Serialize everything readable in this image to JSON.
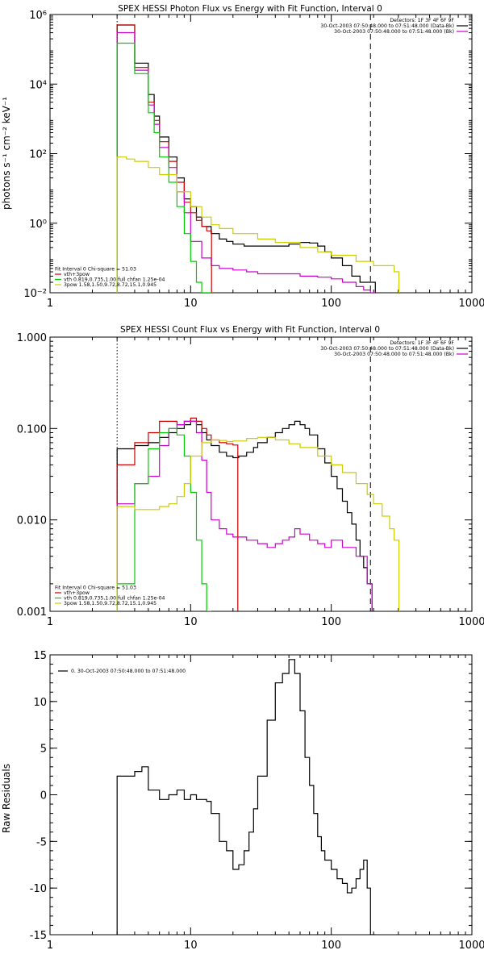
{
  "chart_data": [
    {
      "type": "line",
      "title": "SPEX HESSI Photon Flux vs Energy with Fit Function, Interval 0",
      "xlabel": "",
      "ylabel": "photons s⁻¹ cm⁻² keV⁻¹",
      "xscale": "log",
      "yscale": "log",
      "xlim": [
        1,
        1000
      ],
      "ylim": [
        0.01,
        1000000
      ],
      "x_ticks": [
        1,
        10,
        100,
        1000
      ],
      "x_tick_labels": [
        "1",
        "10",
        "100",
        "1000"
      ],
      "y_ticks": [
        0.01,
        1,
        100,
        10000,
        1000000
      ],
      "y_tick_labels": [
        "10⁻²",
        "10⁰",
        "10²",
        "10⁴",
        "10⁶"
      ],
      "vlines": [
        {
          "x": 3.0,
          "style": "dotted",
          "color": "#000000"
        },
        {
          "x": 190,
          "style": "dashed",
          "color": "#000000"
        }
      ],
      "legend_top_right": [
        {
          "text": "Detectors: 1F 3F 4F 6F 9F",
          "color": ""
        },
        {
          "text": "30-Oct-2003 07:50:48.000 to 07:51:48.000 (Data-Bk)",
          "color": "#000000"
        },
        {
          "text": "30-Oct-2003 07:50:48.000 to 07:51:48.000 (Bk)",
          "color": "#cc00cc"
        }
      ],
      "legend_bottom_left": [
        {
          "text": "Fit Interval 0    Chi-square = 51.03",
          "color": ""
        },
        {
          "text": "vth+3pow",
          "color": "#cc0000"
        },
        {
          "text": "vth 0.819,0.735,1.00  full chfan 1.25e-04",
          "color": "#00cc00"
        },
        {
          "text": "3pow 1.58,1.50,9.72,8.72,15.1,0.945",
          "color": "#cccc00"
        }
      ],
      "series": [
        {
          "color": "#000000",
          "x": [
            3.0,
            3.5,
            4.0,
            4.5,
            5.0,
            5.5,
            6.0,
            7.0,
            8.0,
            9.0,
            10.0,
            11.0,
            12.0,
            14.0,
            16.0,
            18.0,
            20.0,
            24.0,
            30.0,
            40.0,
            50.0,
            60.0,
            70.0,
            80.0,
            90.0,
            100.0,
            120.0,
            140.0,
            160.0,
            190.0
          ],
          "y": [
            500000,
            500000,
            40000,
            40000,
            5000,
            1200,
            300,
            80,
            20,
            5,
            3,
            1.5,
            0.8,
            0.5,
            0.35,
            0.3,
            0.25,
            0.22,
            0.22,
            0.22,
            0.25,
            0.28,
            0.27,
            0.22,
            0.15,
            0.1,
            0.06,
            0.03,
            0.02,
            0.02
          ]
        },
        {
          "color": "#cc0000",
          "x": [
            3.0,
            3.5,
            4.0,
            4.5,
            5.0,
            5.5,
            6.0,
            7.0,
            8.0,
            9.0,
            10.0,
            11.0,
            12.0,
            13.0
          ],
          "y": [
            500000,
            500000,
            30000,
            30000,
            3000,
            900,
            220,
            60,
            15,
            4,
            2,
            1.2,
            0.8,
            0.6
          ]
        },
        {
          "color": "#cc00cc",
          "x": [
            3.0,
            3.5,
            4.0,
            4.5,
            5.0,
            5.5,
            6.0,
            7.0,
            8.0,
            9.0,
            10.0,
            12.0,
            14.0,
            16.0,
            20.0,
            25.0,
            30.0,
            40.0,
            50.0,
            60.0,
            70.0,
            80.0,
            100.0,
            120.0,
            150.0,
            170.0,
            190.0
          ],
          "y": [
            300000,
            300000,
            25000,
            25000,
            2500,
            700,
            150,
            40,
            8,
            2,
            0.3,
            0.1,
            0.06,
            0.05,
            0.045,
            0.04,
            0.035,
            0.035,
            0.035,
            0.03,
            0.03,
            0.028,
            0.025,
            0.02,
            0.015,
            0.012,
            0.01
          ]
        },
        {
          "color": "#00cc00",
          "x": [
            3.0,
            3.5,
            4.0,
            4.5,
            5.0,
            5.5,
            6.0,
            7.0,
            8.0,
            9.0,
            10.0,
            11.0,
            12.0,
            13.0
          ],
          "y": [
            150000,
            150000,
            20000,
            20000,
            1500,
            400,
            80,
            15,
            3,
            0.5,
            0.08,
            0.02,
            0.01,
            0.01
          ]
        },
        {
          "color": "#cccc00",
          "x": [
            3.0,
            3.5,
            4.0,
            5.0,
            6.0,
            8.0,
            10.0,
            12.0,
            14.0,
            16.0,
            20.0,
            30.0,
            40.0,
            60.0,
            80.0,
            100.0,
            150.0,
            200.0,
            280.0
          ],
          "y": [
            80,
            70,
            60,
            40,
            25,
            8,
            3,
            1.5,
            0.9,
            0.7,
            0.5,
            0.35,
            0.28,
            0.2,
            0.15,
            0.12,
            0.08,
            0.06,
            0.04
          ]
        }
      ]
    },
    {
      "type": "line",
      "title": "SPEX HESSI Count Flux vs Energy with Fit Function, Interval 0",
      "xlabel": "",
      "ylabel": "",
      "xscale": "log",
      "yscale": "log",
      "xlim": [
        1,
        1000
      ],
      "ylim": [
        0.001,
        1.0
      ],
      "x_ticks": [
        1,
        10,
        100,
        1000
      ],
      "x_tick_labels": [
        "1",
        "10",
        "100",
        "1000"
      ],
      "y_ticks": [
        0.001,
        0.01,
        0.1,
        1.0
      ],
      "y_tick_labels": [
        "0.001",
        "0.010",
        "0.100",
        "1.000"
      ],
      "vlines": [
        {
          "x": 3.0,
          "style": "dotted",
          "color": "#000000"
        },
        {
          "x": 190,
          "style": "dashed",
          "color": "#000000"
        }
      ],
      "legend_top_right": [
        {
          "text": "Detectors: 1F 3F 4F 6F 9F",
          "color": ""
        },
        {
          "text": "30-Oct-2003 07:50:48.000 to 07:51:48.000 (Data-Bk)",
          "color": "#000000"
        },
        {
          "text": "30-Oct-2003 07:50:48.000 to 07:51:48.000 (Bk)",
          "color": "#cc00cc"
        }
      ],
      "legend_bottom_left": [
        {
          "text": "Fit Interval 0    Chi-square = 51.03",
          "color": ""
        },
        {
          "text": "vth+3pow",
          "color": "#cc0000"
        },
        {
          "text": "vth 0.819,0.735,1.00  full chfan 1.25e-04",
          "color": "#00cc00"
        },
        {
          "text": "3pow 1.58,1.50,9.72,8.72,15.1,0.945",
          "color": "#cccc00"
        }
      ],
      "series": [
        {
          "color": "#000000",
          "x": [
            3.0,
            4.0,
            5.0,
            6.0,
            7.0,
            8.0,
            9.0,
            10.0,
            11.0,
            12.0,
            13.0,
            14.0,
            16.0,
            18.0,
            20.0,
            22.0,
            25.0,
            28.0,
            30.0,
            35.0,
            40.0,
            45.0,
            50.0,
            55.0,
            60.0,
            65.0,
            70.0,
            80.0,
            90.0,
            100.0,
            110.0,
            120.0,
            130.0,
            140.0,
            150.0,
            160.0,
            170.0,
            180.0
          ],
          "y": [
            0.06,
            0.065,
            0.07,
            0.08,
            0.09,
            0.1,
            0.11,
            0.12,
            0.11,
            0.09,
            0.075,
            0.065,
            0.055,
            0.05,
            0.048,
            0.05,
            0.055,
            0.062,
            0.07,
            0.08,
            0.09,
            0.1,
            0.11,
            0.12,
            0.11,
            0.1,
            0.085,
            0.06,
            0.042,
            0.03,
            0.022,
            0.016,
            0.012,
            0.009,
            0.006,
            0.004,
            0.003,
            0.002
          ]
        },
        {
          "color": "#cc0000",
          "x": [
            3.0,
            4.0,
            5.0,
            6.0,
            7.0,
            8.0,
            9.0,
            10.0,
            11.0,
            12.0,
            13.0,
            14.0,
            16.0,
            18.0,
            20.0
          ],
          "y": [
            0.04,
            0.07,
            0.09,
            0.12,
            0.12,
            0.11,
            0.12,
            0.13,
            0.12,
            0.1,
            0.085,
            0.075,
            0.07,
            0.068,
            0.066
          ]
        },
        {
          "color": "#cc00cc",
          "x": [
            3.0,
            4.0,
            5.0,
            6.0,
            7.0,
            8.0,
            9.0,
            10.0,
            11.0,
            12.0,
            13.0,
            14.0,
            16.0,
            18.0,
            20.0,
            25.0,
            30.0,
            35.0,
            40.0,
            45.0,
            50.0,
            55.0,
            60.0,
            70.0,
            80.0,
            90.0,
            100.0,
            120.0,
            150.0,
            180.0
          ],
          "y": [
            0.015,
            0.025,
            0.03,
            0.065,
            0.1,
            0.11,
            0.12,
            0.12,
            0.09,
            0.045,
            0.02,
            0.01,
            0.008,
            0.007,
            0.0065,
            0.006,
            0.0055,
            0.005,
            0.0055,
            0.006,
            0.0065,
            0.008,
            0.007,
            0.006,
            0.0055,
            0.005,
            0.006,
            0.005,
            0.004,
            0.002
          ]
        },
        {
          "color": "#00cc00",
          "x": [
            3.0,
            4.0,
            5.0,
            6.0,
            7.0,
            8.0,
            9.0,
            10.0,
            11.0,
            12.0,
            13.0
          ],
          "y": [
            0.002,
            0.025,
            0.06,
            0.09,
            0.1,
            0.085,
            0.05,
            0.02,
            0.006,
            0.002,
            0.001
          ]
        },
        {
          "color": "#cccc00",
          "x": [
            3.0,
            4.0,
            5.0,
            6.0,
            7.0,
            8.0,
            9.0,
            10.0,
            12.0,
            14.0,
            16.0,
            18.0,
            20.0,
            25.0,
            30.0,
            40.0,
            50.0,
            60.0,
            80.0,
            100.0,
            120.0,
            150.0,
            180.0,
            200.0,
            230.0,
            260.0,
            280.0
          ],
          "y": [
            0.014,
            0.013,
            0.013,
            0.014,
            0.015,
            0.018,
            0.025,
            0.05,
            0.07,
            0.075,
            0.074,
            0.072,
            0.073,
            0.078,
            0.08,
            0.075,
            0.068,
            0.062,
            0.05,
            0.04,
            0.033,
            0.025,
            0.019,
            0.015,
            0.011,
            0.008,
            0.006
          ]
        }
      ]
    },
    {
      "type": "line",
      "title": "",
      "xlabel": "",
      "ylabel": "Raw Residuals",
      "xscale": "log",
      "yscale": "linear",
      "xlim": [
        1,
        1000
      ],
      "ylim": [
        -15,
        15
      ],
      "x_ticks": [
        1,
        10,
        100,
        1000
      ],
      "x_tick_labels": [
        "1",
        "10",
        "100",
        "1000"
      ],
      "y_ticks": [
        -15,
        -10,
        -5,
        0,
        5,
        10,
        15
      ],
      "y_tick_labels": [
        "-15",
        "-10",
        "-5",
        "0",
        "5",
        "10",
        "15"
      ],
      "vlines": [],
      "legend_top_right": [],
      "legend_bottom_left": [],
      "legend_top_left": [
        {
          "text": "0. 30-Oct-2003 07:50:48.000 to 07:51:48.000",
          "color": "#000000"
        }
      ],
      "series": [
        {
          "color": "#000000",
          "x": [
            3.0,
            4.0,
            4.5,
            5.0,
            6.0,
            7.0,
            8.0,
            9.0,
            10.0,
            11.0,
            12.0,
            13.0,
            14.0,
            16.0,
            18.0,
            20.0,
            22.0,
            24.0,
            26.0,
            28.0,
            30.0,
            35.0,
            40.0,
            45.0,
            50.0,
            55.0,
            60.0,
            65.0,
            70.0,
            75.0,
            80.0,
            85.0,
            90.0,
            100.0,
            110.0,
            120.0,
            130.0,
            140.0,
            150.0,
            160.0,
            170.0,
            180.0,
            190.0
          ],
          "y": [
            2.0,
            2.5,
            3.0,
            0.5,
            -0.5,
            0.0,
            0.5,
            -0.5,
            0.0,
            -0.5,
            -0.5,
            -0.7,
            -2.0,
            -5.0,
            -6.0,
            -8.0,
            -7.5,
            -6.0,
            -4.0,
            -1.5,
            2.0,
            8.0,
            12.0,
            13.0,
            14.5,
            13.0,
            9.0,
            4.0,
            1.0,
            -2.0,
            -4.5,
            -6.0,
            -7.0,
            -8.0,
            -9.0,
            -9.5,
            -10.5,
            -10.0,
            -9.0,
            -8.0,
            -7.0,
            -10.0,
            -15.0
          ]
        }
      ]
    }
  ]
}
